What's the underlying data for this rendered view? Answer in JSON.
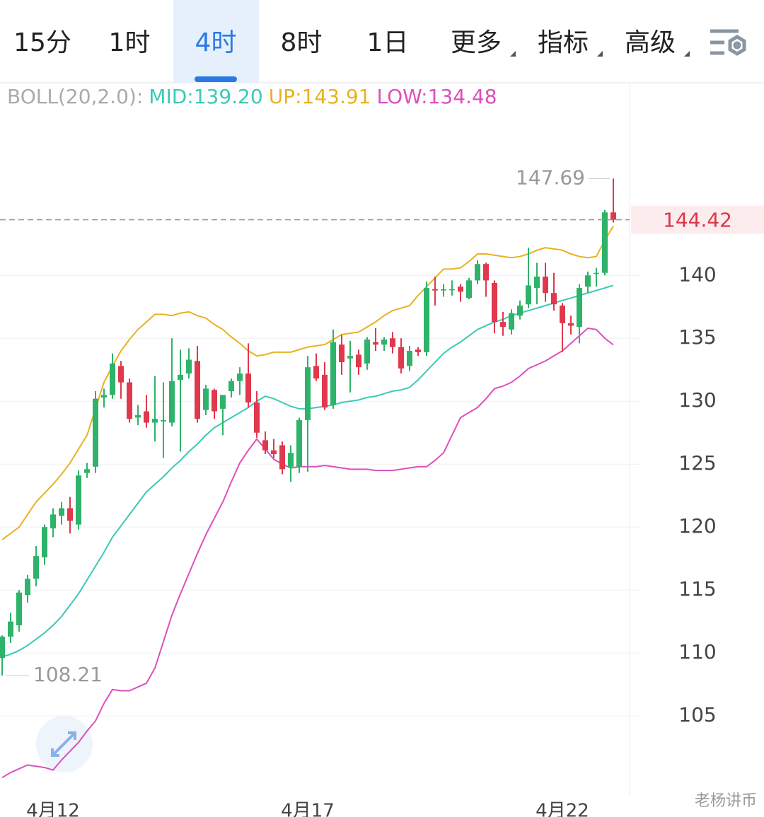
{
  "toolbar": {
    "tabs": [
      "15分",
      "1时",
      "4时",
      "8时",
      "1日",
      "更多",
      "指标",
      "高级"
    ],
    "dropdown": [
      false,
      false,
      false,
      false,
      false,
      true,
      true,
      true
    ],
    "active": 2
  },
  "watermark": "老杨讲币",
  "chart_data": {
    "type": "candlestick",
    "indicator": "BOLL(20,2.0):",
    "categories": [
      null,
      null,
      null,
      null,
      null,
      null,
      "4月12",
      null,
      null,
      null,
      null,
      null,
      null,
      null,
      null,
      null,
      null,
      null,
      null,
      null,
      null,
      null,
      null,
      null,
      null,
      null,
      null,
      null,
      null,
      null,
      null,
      null,
      null,
      null,
      null,
      null,
      "4月17",
      null,
      null,
      null,
      null,
      null,
      null,
      null,
      null,
      null,
      null,
      null,
      null,
      null,
      null,
      null,
      null,
      null,
      null,
      null,
      null,
      null,
      null,
      null,
      null,
      null,
      null,
      null,
      null,
      null,
      "4月22",
      null,
      null,
      null,
      null,
      null,
      null
    ],
    "open": [
      109.6,
      111.3,
      112.2,
      114.6,
      115.9,
      117.6,
      119.9,
      120.9,
      121.5,
      120.2,
      124.3,
      124.8,
      130.3,
      130.5,
      132.8,
      131.5,
      128.7,
      129.2,
      128.3,
      128.4,
      128.3,
      131.7,
      132.2,
      133.2,
      129.3,
      130.9,
      129.4,
      130.8,
      131.6,
      132.2,
      129.9,
      126.9,
      126.1,
      126.5,
      124.8,
      124.8,
      128.5,
      132.8,
      132.1,
      129.7,
      134.5,
      133.4,
      133.7,
      133.0,
      134.7,
      134.5,
      135.0,
      134.3,
      132.8,
      134.1,
      133.9,
      138.9,
      138.8,
      138.9,
      139.1,
      138.2,
      139.6,
      140.9,
      139.4,
      136.3,
      135.7,
      136.8,
      137.7,
      139.0,
      139.9,
      138.6,
      137.6,
      136.2,
      135.9,
      139.1,
      140.2,
      140.2,
      145.0
    ],
    "high": [
      111.4,
      113.2,
      115.0,
      116.2,
      118.5,
      120.2,
      121.5,
      122.0,
      122.4,
      124.5,
      125.1,
      130.8,
      131.0,
      133.8,
      133.2,
      131.8,
      129.7,
      130.5,
      132.0,
      131.5,
      135.0,
      134.1,
      134.2,
      134.4,
      131.3,
      131.0,
      130.3,
      131.8,
      132.7,
      134.6,
      130.8,
      127.6,
      127.0,
      126.8,
      126.5,
      128.7,
      133.6,
      133.8,
      133.1,
      135.7,
      135.3,
      134.8,
      134.1,
      135.1,
      135.8,
      135.1,
      135.5,
      135.0,
      134.4,
      134.3,
      139.5,
      139.9,
      139.3,
      139.6,
      139.3,
      139.8,
      141.2,
      141.0,
      139.6,
      137.1,
      137.3,
      138.0,
      142.2,
      141.0,
      141.0,
      140.2,
      137.8,
      136.8,
      139.3,
      140.3,
      140.6,
      145.2,
      147.69
    ],
    "low": [
      108.21,
      110.8,
      111.7,
      114.0,
      115.3,
      117.0,
      119.2,
      120.2,
      119.5,
      119.8,
      123.9,
      124.3,
      129.5,
      130.2,
      130.2,
      128.3,
      128.1,
      127.9,
      126.8,
      125.5,
      128.0,
      126.0,
      131.8,
      128.3,
      128.9,
      128.6,
      127.3,
      130.3,
      130.5,
      129.5,
      127.1,
      125.8,
      125.5,
      124.2,
      123.6,
      124.3,
      124.4,
      131.6,
      129.3,
      129.4,
      132.1,
      130.7,
      132.1,
      132.5,
      134.0,
      134.0,
      133.8,
      132.2,
      132.4,
      133.6,
      133.6,
      137.6,
      138.3,
      138.4,
      137.9,
      138.1,
      139.3,
      138.3,
      135.4,
      135.2,
      135.3,
      136.5,
      137.4,
      137.7,
      137.9,
      137.2,
      133.9,
      135.3,
      134.6,
      138.6,
      139.1,
      140.0,
      144.2
    ],
    "close": [
      111.3,
      112.5,
      114.8,
      115.9,
      117.7,
      120.0,
      121.0,
      121.5,
      120.5,
      124.1,
      124.6,
      130.2,
      130.5,
      133.0,
      131.5,
      128.6,
      128.9,
      128.3,
      128.6,
      128.5,
      131.6,
      132.1,
      133.3,
      128.6,
      131.0,
      129.2,
      130.5,
      131.6,
      132.2,
      129.9,
      127.5,
      126.1,
      125.8,
      124.6,
      125.9,
      128.5,
      132.7,
      131.8,
      129.5,
      134.7,
      133.1,
      133.6,
      132.7,
      134.9,
      134.5,
      134.9,
      134.3,
      132.6,
      134.0,
      133.9,
      139.0,
      138.8,
      138.9,
      138.9,
      138.7,
      139.6,
      140.9,
      139.6,
      136.3,
      135.9,
      137.0,
      137.6,
      139.2,
      139.9,
      138.6,
      137.7,
      136.2,
      136.0,
      139.0,
      140.0,
      140.2,
      145.0,
      144.42
    ],
    "up_color": "#2db36a",
    "down_color": "#e0384c",
    "series": [
      {
        "name": "MID:139.20",
        "color": "#3cc9b6",
        "values": [
          109.7,
          109.9,
          110.2,
          110.6,
          111.1,
          111.6,
          112.2,
          112.9,
          113.8,
          114.7,
          115.8,
          116.9,
          118.0,
          119.2,
          120.1,
          121.0,
          121.9,
          122.8,
          123.4,
          124.0,
          124.7,
          125.3,
          126.0,
          126.6,
          127.3,
          127.9,
          128.3,
          128.7,
          129.1,
          129.5,
          130.0,
          130.4,
          130.2,
          129.9,
          129.6,
          129.4,
          129.4,
          129.5,
          129.6,
          129.7,
          129.9,
          130.0,
          130.1,
          130.3,
          130.4,
          130.6,
          130.8,
          130.9,
          131.1,
          131.7,
          132.4,
          133.1,
          133.8,
          134.3,
          134.7,
          135.2,
          135.7,
          136.0,
          136.3,
          136.5,
          136.8,
          137.0,
          137.2,
          137.4,
          137.6,
          137.8,
          138.0,
          138.2,
          138.4,
          138.6,
          138.8,
          139.0,
          139.2
        ]
      },
      {
        "name": "UP:143.91",
        "color": "#e8b220",
        "values": [
          119.0,
          119.5,
          120.0,
          121.0,
          122.0,
          122.7,
          123.4,
          124.2,
          125.1,
          126.2,
          127.3,
          129.4,
          131.5,
          132.8,
          134.0,
          134.9,
          135.7,
          136.3,
          136.9,
          136.9,
          136.8,
          137.0,
          137.1,
          136.8,
          136.6,
          136.1,
          135.7,
          135.1,
          134.6,
          134.0,
          133.6,
          133.7,
          133.9,
          133.9,
          133.9,
          134.1,
          134.3,
          134.4,
          134.5,
          134.9,
          135.3,
          135.4,
          135.5,
          135.9,
          136.3,
          136.8,
          137.2,
          137.4,
          137.6,
          138.4,
          139.1,
          139.8,
          140.5,
          140.5,
          140.6,
          141.1,
          141.7,
          141.7,
          141.6,
          141.5,
          141.4,
          141.5,
          141.7,
          142.0,
          142.2,
          142.1,
          142.0,
          141.7,
          141.5,
          141.4,
          141.5,
          142.8,
          143.91
        ]
      },
      {
        "name": "LOW:134.48",
        "color": "#dd4fbd",
        "values": [
          100.1,
          100.5,
          100.8,
          101.1,
          101.0,
          100.9,
          100.7,
          101.5,
          102.2,
          102.9,
          103.8,
          104.6,
          106.0,
          107.1,
          107.0,
          107.0,
          107.3,
          107.6,
          108.8,
          110.9,
          113.0,
          114.7,
          116.3,
          117.9,
          119.4,
          120.7,
          122.0,
          123.6,
          125.1,
          126.1,
          127.0,
          126.2,
          125.4,
          125.0,
          124.7,
          124.8,
          124.8,
          124.8,
          124.9,
          124.8,
          124.7,
          124.6,
          124.6,
          124.6,
          124.5,
          124.5,
          124.5,
          124.6,
          124.7,
          124.8,
          124.8,
          125.3,
          125.9,
          127.3,
          128.7,
          129.1,
          129.5,
          130.2,
          131.0,
          131.2,
          131.5,
          132.0,
          132.6,
          132.9,
          133.2,
          133.6,
          134.0,
          134.6,
          135.2,
          135.8,
          135.7,
          135.0,
          134.48
        ]
      }
    ],
    "ylim": [
      98.6,
      155.3
    ],
    "yticks": [
      105,
      110,
      115,
      120,
      125,
      130,
      135,
      140
    ],
    "grid": true
  }
}
